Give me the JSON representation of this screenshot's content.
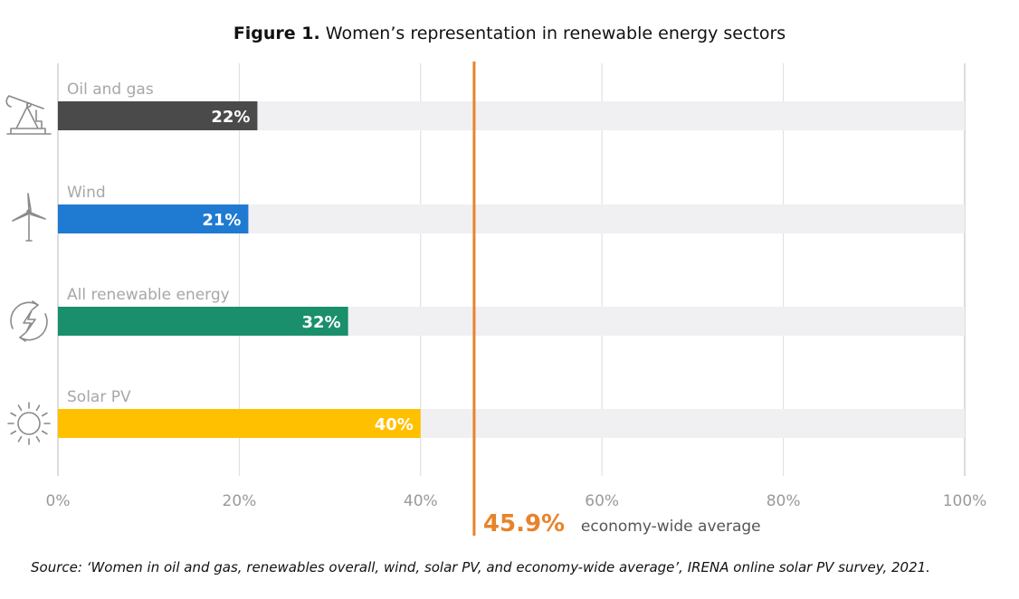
{
  "figure_title": {
    "prefix": "Figure 1.",
    "text": "Women’s representation in renewable energy sectors"
  },
  "source": "Source: ‘Women in oil and gas, renewables overall, wind, solar PV, and economy-wide average’, IRENA online solar PV survey, 2021.",
  "chart_data": {
    "type": "bar",
    "orientation": "horizontal",
    "categories": [
      "Oil and gas",
      "Wind",
      "All renewable energy",
      "Solar PV"
    ],
    "values": [
      22,
      21,
      32,
      40
    ],
    "value_labels": [
      "22%",
      "21%",
      "32%",
      "40%"
    ],
    "bar_colors": [
      "#4a4a4a",
      "#1f7bd1",
      "#1a8f6b",
      "#ffc000"
    ],
    "icons": [
      "oil-pump-icon",
      "wind-turbine-icon",
      "renewable-cycle-icon",
      "sun-icon"
    ],
    "xlim": [
      0,
      100
    ],
    "x_ticks": [
      0,
      20,
      40,
      60,
      80,
      100
    ],
    "x_tick_labels": [
      "0%",
      "20%",
      "40%",
      "60%",
      "80%",
      "100%"
    ],
    "reference_line": {
      "value": 45.9,
      "label_value": "45.9%",
      "label_text": "economy-wide average",
      "color": "#e8832a"
    },
    "track_color": "#f0eff2",
    "grid": true
  }
}
